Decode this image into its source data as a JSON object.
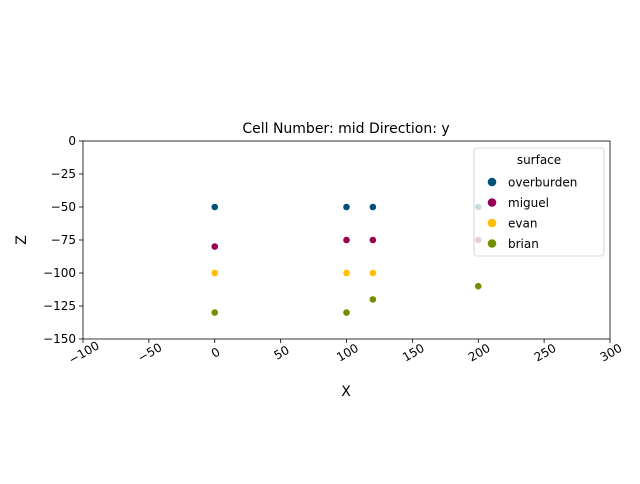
{
  "chart_data": {
    "type": "scatter",
    "title": "Cell Number: mid Direction: y",
    "xlabel": "X",
    "ylabel": "Z",
    "xlim": [
      -100,
      300
    ],
    "ylim": [
      -150,
      0
    ],
    "x_ticks": [
      -100,
      -50,
      0,
      50,
      100,
      150,
      200,
      250,
      300
    ],
    "y_ticks": [
      0,
      -25,
      -50,
      -75,
      -100,
      -125,
      -150
    ],
    "x_tick_labels": [
      "−100",
      "−50",
      "0",
      "50",
      "100",
      "150",
      "200",
      "250",
      "300"
    ],
    "y_tick_labels": [
      "0",
      "−25",
      "−50",
      "−75",
      "−100",
      "−125",
      "−150"
    ],
    "grid": false,
    "legend_title": "surface",
    "legend_position": "top-right",
    "series": [
      {
        "name": "overburden",
        "color": "#00507a",
        "x": [
          0,
          100,
          120,
          200
        ],
        "y": [
          -50,
          -50,
          -50,
          -50
        ]
      },
      {
        "name": "miguel",
        "color": "#990055",
        "x": [
          0,
          100,
          120,
          200
        ],
        "y": [
          -80,
          -75,
          -75,
          -75
        ]
      },
      {
        "name": "evan",
        "color": "#ffbe00",
        "x": [
          0,
          100,
          120
        ],
        "y": [
          -100,
          -100,
          -100
        ]
      },
      {
        "name": "brian",
        "color": "#728f02",
        "x": [
          0,
          100,
          120,
          200
        ],
        "y": [
          -130,
          -130,
          -120,
          -110
        ]
      }
    ]
  }
}
